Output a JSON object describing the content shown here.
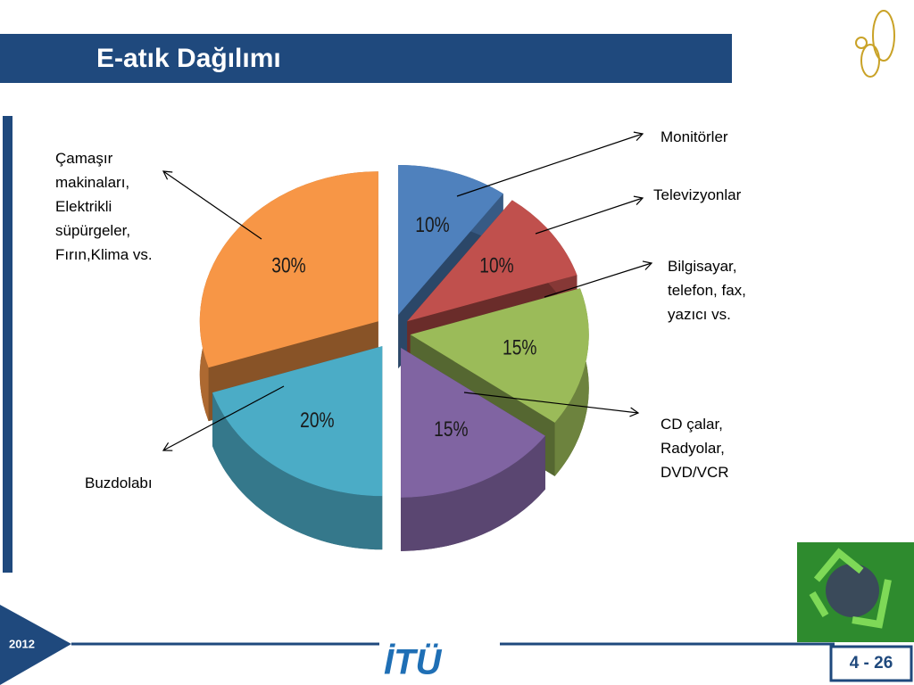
{
  "chart_data": {
    "type": "pie",
    "title": "E-atık Dağılımı",
    "categories": [
      "Monitörler",
      "Televizyonlar",
      "Bilgisayar, telefon, fax, yazıcı vs.",
      "CD  çalar, Radyolar, DVD/VCR",
      "Buzdolabı",
      "Çamaşır makinaları, Elektrikli süpürgeler, Fırın,Klima vs."
    ],
    "values": [
      10,
      10,
      15,
      15,
      20,
      30
    ],
    "value_labels": [
      "10%",
      "10%",
      "15%",
      "15%",
      "20%",
      "30%"
    ],
    "colors": [
      "#4f81bd",
      "#c0504d",
      "#9bbb59",
      "#8064a2",
      "#4bacc6",
      "#f79646"
    ]
  },
  "footer": {
    "year": "2012",
    "logo": "İTÜ",
    "page": "4 - 26"
  }
}
